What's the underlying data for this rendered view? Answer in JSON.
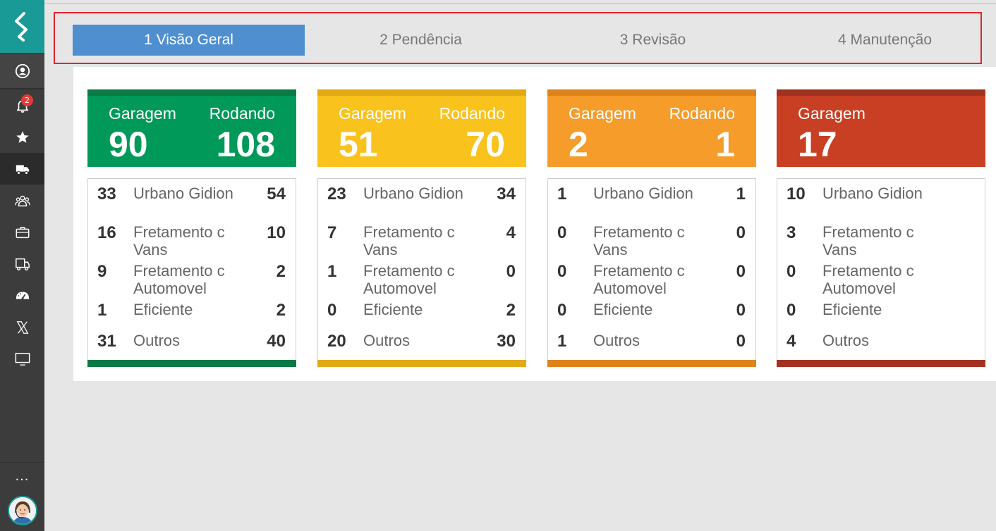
{
  "app": {
    "title": ""
  },
  "sidebar": {
    "items": [
      {
        "name": "user-icon"
      },
      {
        "name": "bell-icon",
        "badge": "2"
      },
      {
        "name": "star-icon"
      },
      {
        "name": "truck-icon",
        "active": true
      },
      {
        "name": "people-icon"
      },
      {
        "name": "briefcase-icon"
      },
      {
        "name": "bus-icon"
      },
      {
        "name": "gauge-icon"
      },
      {
        "name": "x-icon"
      },
      {
        "name": "monitor-icon"
      }
    ],
    "more_label": "..."
  },
  "tabs": [
    {
      "label": "1 Visão Geral",
      "active": true
    },
    {
      "label": "2 Pendência"
    },
    {
      "label": "3 Revisão"
    },
    {
      "label": "4 Manutenção"
    }
  ],
  "colors": {
    "green": "#00995a",
    "green_dark": "#0b7a45",
    "yellow": "#f9c21c",
    "yellow_dark": "#e0aa14",
    "orange": "#f59c2a",
    "orange_dark": "#de8319",
    "red": "#c83f23",
    "red_dark": "#a23220",
    "tab_active": "#4f8fd0",
    "highlight": "#e0242c"
  },
  "cards": [
    {
      "garagem_label": "Garagem",
      "garagem_value": "90",
      "rodando_label": "Rodando",
      "rodando_value": "108",
      "rows": [
        {
          "left": "33",
          "label": "Urbano Gidion",
          "right": "54"
        },
        {
          "left": "16",
          "label": "Fretamento c Vans",
          "right": "10"
        },
        {
          "left": "9",
          "label": "Fretamento c Automovel",
          "right": "2"
        },
        {
          "left": "1",
          "label": "Eficiente",
          "right": "2"
        },
        {
          "left": "31",
          "label": "Outros",
          "right": "40"
        }
      ]
    },
    {
      "garagem_label": "Garagem",
      "garagem_value": "51",
      "rodando_label": "Rodando",
      "rodando_value": "70",
      "rows": [
        {
          "left": "23",
          "label": "Urbano Gidion",
          "right": "34"
        },
        {
          "left": "7",
          "label": "Fretamento c Vans",
          "right": "4"
        },
        {
          "left": "1",
          "label": "Fretamento c Automovel",
          "right": "0"
        },
        {
          "left": "0",
          "label": "Eficiente",
          "right": "2"
        },
        {
          "left": "20",
          "label": "Outros",
          "right": "30"
        }
      ]
    },
    {
      "garagem_label": "Garagem",
      "garagem_value": "2",
      "rodando_label": "Rodando",
      "rodando_value": "1",
      "rows": [
        {
          "left": "1",
          "label": "Urbano Gidion",
          "right": "1"
        },
        {
          "left": "0",
          "label": "Fretamento c Vans",
          "right": "0"
        },
        {
          "left": "0",
          "label": "Fretamento c Automovel",
          "right": "0"
        },
        {
          "left": "0",
          "label": "Eficiente",
          "right": "0"
        },
        {
          "left": "1",
          "label": "Outros",
          "right": "0"
        }
      ]
    },
    {
      "garagem_label": "Garagem",
      "garagem_value": "17",
      "rows": [
        {
          "left": "10",
          "label": "Urbano Gidion"
        },
        {
          "left": "3",
          "label": "Fretamento c Vans"
        },
        {
          "left": "0",
          "label": "Fretamento c Automovel"
        },
        {
          "left": "0",
          "label": "Eficiente"
        },
        {
          "left": "4",
          "label": "Outros"
        }
      ]
    }
  ]
}
